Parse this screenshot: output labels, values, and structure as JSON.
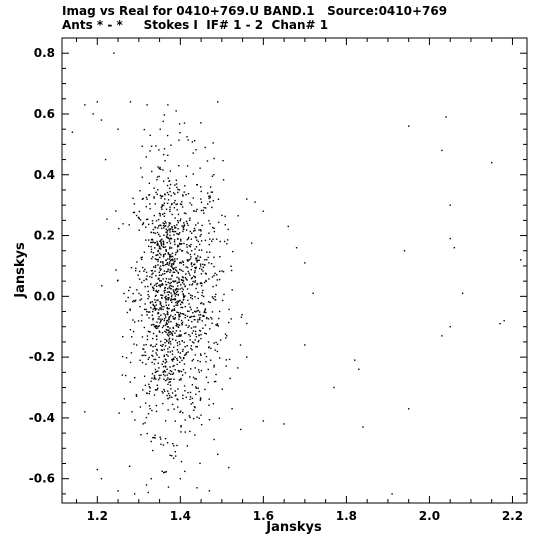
{
  "title": {
    "line1": "Imag vs Real for 0410+769.U BAND.1   Source:0410+769",
    "line2": "Ants * - *     Stokes I  IF# 1 - 2  Chan# 1"
  },
  "chart_data": {
    "type": "scatter",
    "xlabel": "Janskys",
    "ylabel": "Janskys",
    "xlim": [
      1.115,
      2.235
    ],
    "ylim": [
      -0.68,
      0.85
    ],
    "x_ticks": [
      1.2,
      1.4,
      1.6,
      1.8,
      2.0,
      2.2
    ],
    "x_tick_labels": [
      "1.2",
      "1.4",
      "1.6",
      "1.8",
      "2.0",
      "2.2"
    ],
    "y_ticks": [
      -0.6,
      -0.4,
      -0.2,
      0.0,
      0.2,
      0.4,
      0.6,
      0.8
    ],
    "y_tick_labels": [
      "-0.6",
      "-0.4",
      "-0.2",
      "0.0",
      "0.2",
      "0.4",
      "0.6",
      "0.8"
    ],
    "grid": false,
    "series": [
      {
        "points_sample": [
          [
            1.14,
            0.54
          ],
          [
            1.17,
            0.63
          ],
          [
            1.19,
            0.6
          ],
          [
            1.2,
            0.64
          ],
          [
            1.21,
            0.58
          ],
          [
            1.22,
            0.45
          ],
          [
            1.24,
            0.8
          ],
          [
            1.25,
            0.55
          ],
          [
            1.28,
            0.64
          ],
          [
            1.32,
            0.63
          ],
          [
            1.37,
            0.63
          ],
          [
            1.39,
            0.61
          ],
          [
            1.41,
            0.57
          ],
          [
            1.49,
            0.64
          ],
          [
            1.46,
            0.49
          ],
          [
            1.56,
            0.32
          ],
          [
            1.58,
            0.31
          ],
          [
            1.6,
            0.28
          ],
          [
            1.66,
            0.23
          ],
          [
            1.68,
            0.16
          ],
          [
            1.7,
            0.11
          ],
          [
            1.94,
            0.15
          ],
          [
            1.95,
            0.56
          ],
          [
            2.03,
            0.48
          ],
          [
            2.04,
            0.59
          ],
          [
            2.05,
            0.3
          ],
          [
            2.05,
            0.19
          ],
          [
            2.06,
            0.16
          ],
          [
            2.08,
            0.01
          ],
          [
            2.15,
            0.44
          ],
          [
            2.22,
            0.12
          ],
          [
            2.17,
            -0.09
          ],
          [
            2.18,
            -0.08
          ],
          [
            2.05,
            -0.1
          ],
          [
            2.03,
            -0.13
          ],
          [
            1.95,
            -0.37
          ],
          [
            1.91,
            -0.65
          ],
          [
            1.82,
            -0.21
          ],
          [
            1.83,
            -0.24
          ],
          [
            1.84,
            -0.43
          ],
          [
            1.77,
            -0.3
          ],
          [
            1.65,
            -0.42
          ],
          [
            1.7,
            -0.16
          ],
          [
            1.72,
            0.01
          ],
          [
            1.6,
            -0.41
          ],
          [
            1.56,
            -0.2
          ],
          [
            1.52,
            -0.27
          ],
          [
            1.17,
            -0.38
          ],
          [
            1.2,
            -0.57
          ],
          [
            1.21,
            -0.6
          ],
          [
            1.25,
            -0.64
          ],
          [
            1.29,
            -0.65
          ],
          [
            1.33,
            -0.6
          ],
          [
            1.36,
            -0.58
          ],
          [
            1.4,
            -0.6
          ],
          [
            1.44,
            -0.63
          ],
          [
            1.47,
            -0.64
          ],
          [
            1.49,
            -0.52
          ]
        ],
        "dense_cluster": {
          "center_x": 1.38,
          "center_y": 0.0,
          "spread_x": 0.045,
          "spread_y": 0.22,
          "approx_count": 1500
        }
      }
    ]
  }
}
